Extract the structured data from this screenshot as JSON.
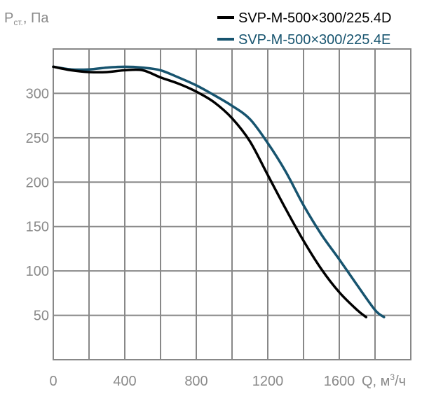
{
  "chart_data": {
    "type": "line",
    "ylabel": {
      "main": "P",
      "sub": "ст.",
      "rest": ", Па"
    },
    "xlabel": {
      "main": "Q, м",
      "sup": "3",
      "rest": "/ч"
    },
    "x_ticks": [
      "0",
      "400",
      "800",
      "1200",
      "1600"
    ],
    "y_ticks": [
      "50",
      "100",
      "150",
      "200",
      "250",
      "300"
    ],
    "xlim": [
      0,
      2000
    ],
    "ylim": [
      0,
      350
    ],
    "grid": true,
    "legend_position": "top-right",
    "series": [
      {
        "name": "SVP-M-500×300/225.4D",
        "color": "#000000",
        "points": [
          [
            0,
            330
          ],
          [
            100,
            326
          ],
          [
            200,
            324
          ],
          [
            300,
            324
          ],
          [
            400,
            326
          ],
          [
            500,
            326
          ],
          [
            600,
            318
          ],
          [
            700,
            311
          ],
          [
            800,
            302
          ],
          [
            900,
            290
          ],
          [
            1000,
            272
          ],
          [
            1100,
            246
          ],
          [
            1200,
            208
          ],
          [
            1300,
            170
          ],
          [
            1400,
            134
          ],
          [
            1500,
            102
          ],
          [
            1600,
            76
          ],
          [
            1700,
            56
          ],
          [
            1750,
            48
          ]
        ]
      },
      {
        "name": "SVP-M-500×300/225.4E",
        "color": "#17546f",
        "points": [
          [
            0,
            330
          ],
          [
            100,
            327
          ],
          [
            200,
            327
          ],
          [
            300,
            329
          ],
          [
            400,
            330
          ],
          [
            500,
            329
          ],
          [
            600,
            326
          ],
          [
            700,
            318
          ],
          [
            800,
            309
          ],
          [
            900,
            298
          ],
          [
            1000,
            286
          ],
          [
            1100,
            271
          ],
          [
            1200,
            244
          ],
          [
            1300,
            212
          ],
          [
            1400,
            174
          ],
          [
            1500,
            141
          ],
          [
            1600,
            113
          ],
          [
            1700,
            84
          ],
          [
            1800,
            56
          ],
          [
            1850,
            48
          ]
        ]
      }
    ]
  }
}
